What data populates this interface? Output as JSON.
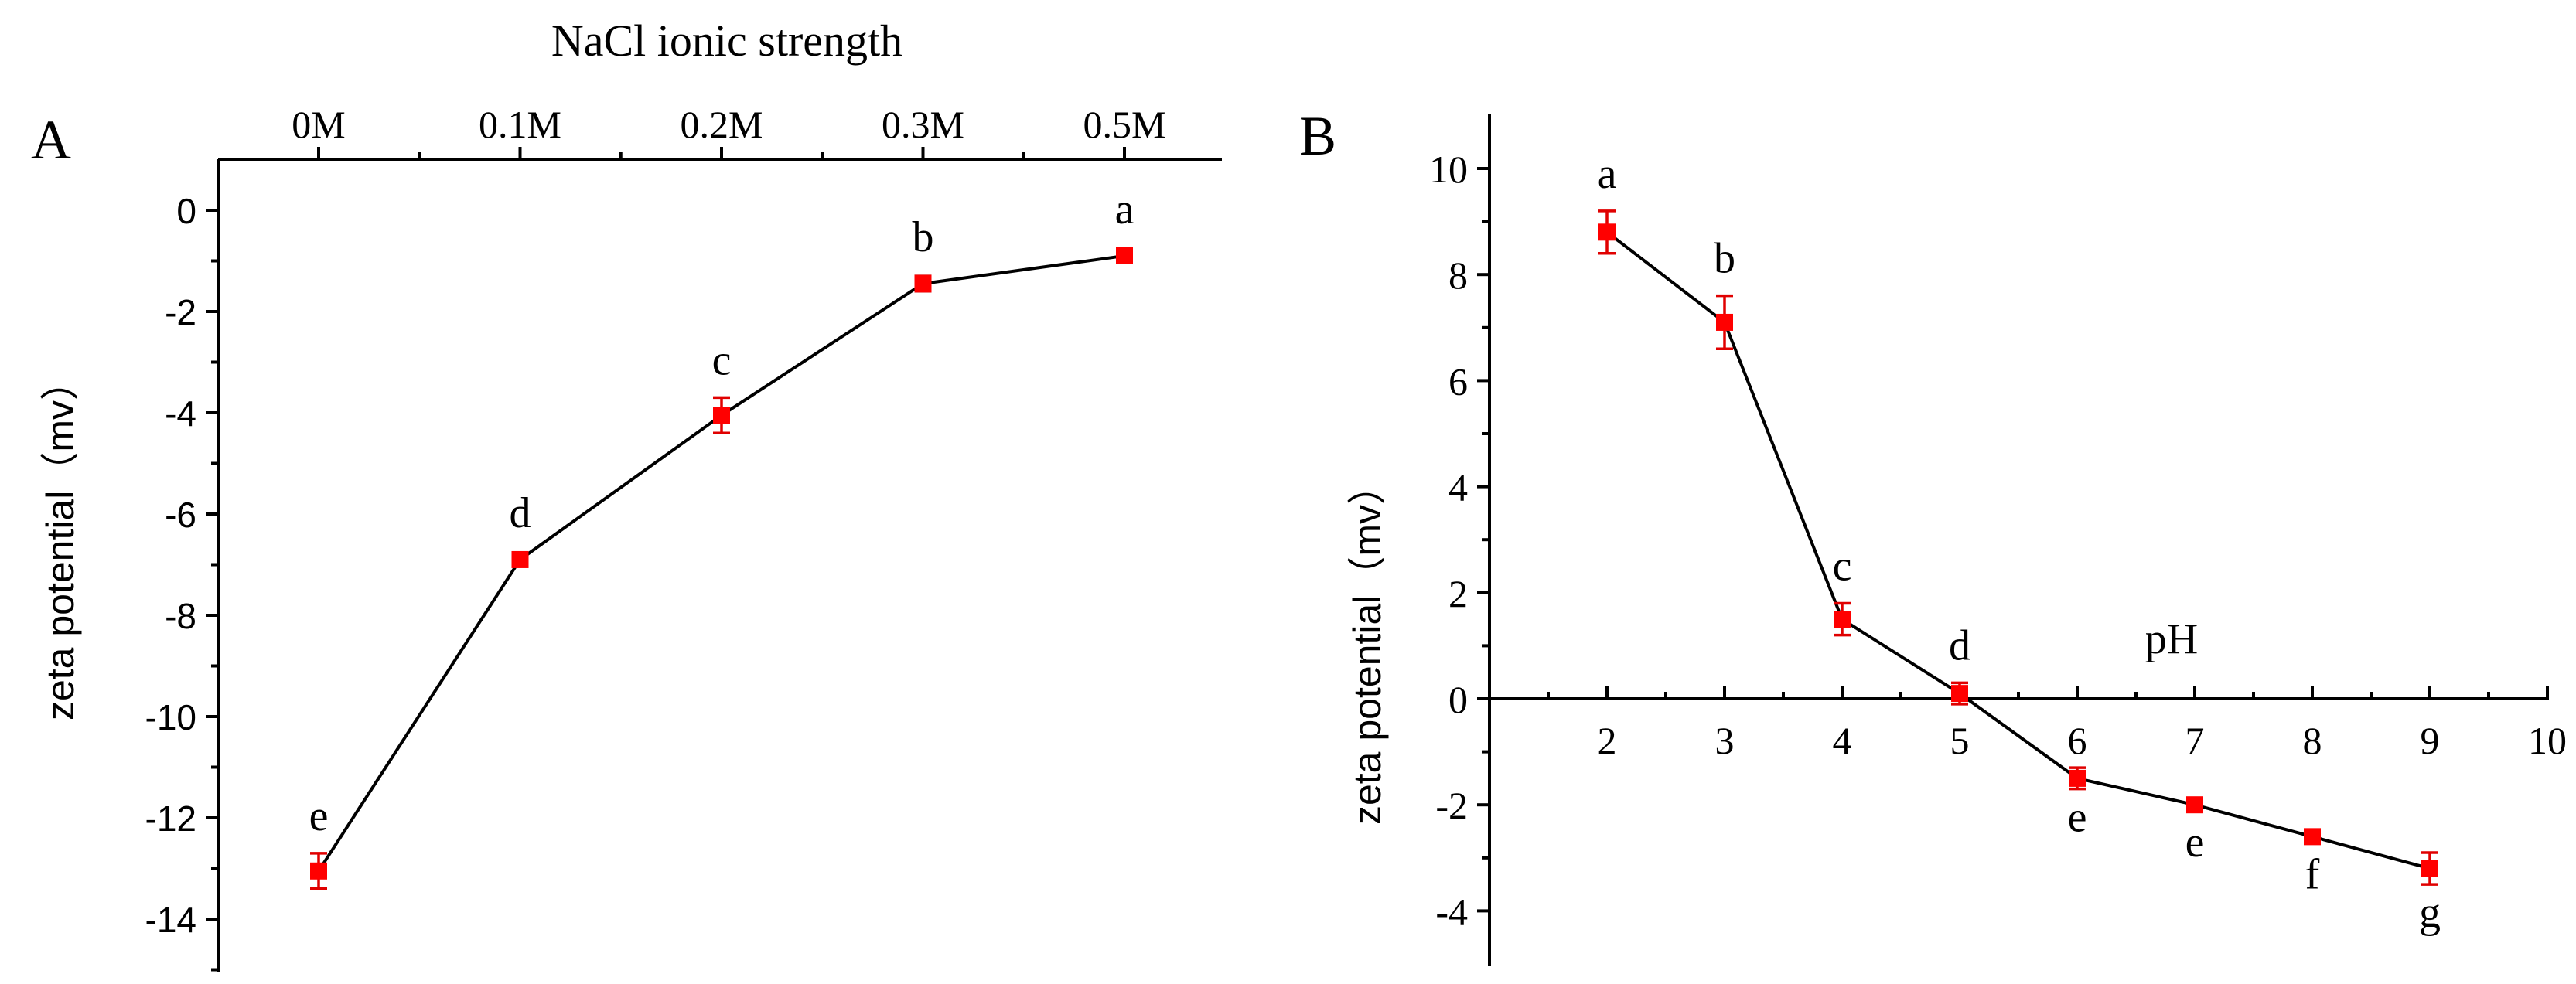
{
  "chart_data": [
    {
      "panel_label": "A",
      "type": "line",
      "title": "",
      "xlabel": "NaCl ionic strength",
      "xlabel_position": "top",
      "ylabel": "zeta potential（mv）",
      "categories": [
        "0M",
        "0.1M",
        "0.2M",
        "0.3M",
        "0.5M"
      ],
      "values": [
        -13.05,
        -6.9,
        -4.05,
        -1.45,
        -0.9
      ],
      "errors": [
        0.35,
        0.1,
        0.35,
        0.15,
        0.1
      ],
      "significance_letters": [
        "e",
        "d",
        "c",
        "b",
        "a"
      ],
      "letter_placement": [
        "above",
        "above",
        "above",
        "above",
        "above"
      ],
      "ylim": [
        -15,
        1
      ],
      "yticks": [
        0,
        -2,
        -4,
        -6,
        -8,
        -10,
        -12,
        -14
      ],
      "ytick_labels": [
        "0",
        "-2",
        "-4",
        "-6",
        "-8",
        "-10",
        "-12",
        "-14"
      ],
      "marker_color": "#ff0000",
      "line_color": "#000000",
      "grid": false
    },
    {
      "panel_label": "B",
      "type": "line",
      "title": "",
      "xlabel": "pH",
      "ylabel": "zeta potential（mv）",
      "x": [
        2,
        3,
        4,
        5,
        6,
        7,
        8,
        9
      ],
      "values": [
        8.8,
        7.1,
        1.5,
        0.1,
        -1.5,
        -2.0,
        -2.6,
        -3.2
      ],
      "errors": [
        0.4,
        0.5,
        0.3,
        0.2,
        0.2,
        0.1,
        0.1,
        0.3
      ],
      "significance_letters": [
        "a",
        "b",
        "c",
        "d",
        "e",
        "e",
        "f",
        "g"
      ],
      "letter_placement": [
        "above",
        "above",
        "above",
        "above",
        "below",
        "below",
        "below",
        "below"
      ],
      "xlim": [
        1,
        10
      ],
      "xticks": [
        2,
        3,
        4,
        5,
        6,
        7,
        8,
        9,
        10
      ],
      "xtick_labels": [
        "2",
        "3",
        "4",
        "5",
        "6",
        "7",
        "8",
        "9",
        "10"
      ],
      "ylim": [
        -5,
        11
      ],
      "yticks": [
        10,
        8,
        6,
        4,
        2,
        0,
        -2,
        -4
      ],
      "ytick_labels": [
        "10",
        "8",
        "6",
        "4",
        "2",
        "0",
        "-2",
        "-4"
      ],
      "marker_color": "#ff0000",
      "line_color": "#000000",
      "grid": false
    }
  ]
}
